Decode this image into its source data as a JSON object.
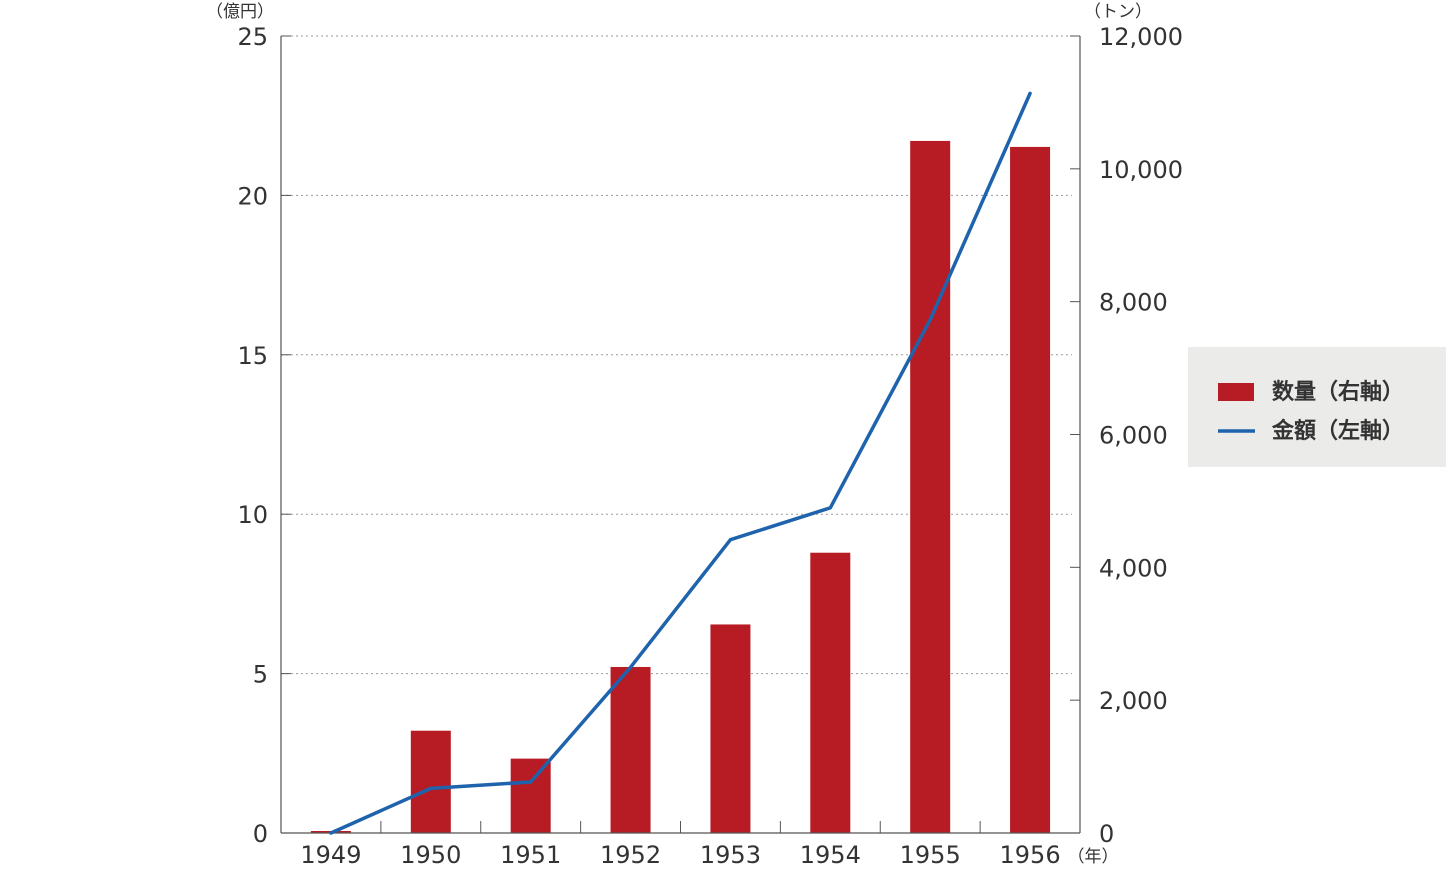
{
  "chart_data": {
    "type": "bar",
    "categories": [
      "1949",
      "1950",
      "1951",
      "1952",
      "1953",
      "1954",
      "1955",
      "1956"
    ],
    "series": [
      {
        "name": "数量（右軸）",
        "type": "bar",
        "axis": "right",
        "color": "#b71c25",
        "values": [
          30,
          1540,
          1120,
          2500,
          3140,
          4220,
          10420,
          10330
        ]
      },
      {
        "name": "金額（左軸）",
        "type": "line",
        "axis": "left",
        "color": "#1f63ad",
        "values": [
          0,
          1.4,
          1.6,
          5.2,
          9.2,
          10.2,
          16.1,
          23.2
        ]
      }
    ],
    "left_axis": {
      "unit": "（億円）",
      "ylim": [
        0,
        25
      ],
      "ticks": [
        0,
        5,
        10,
        15,
        20,
        25
      ],
      "tick_labels": [
        "0",
        "5",
        "10",
        "15",
        "20",
        "25"
      ]
    },
    "right_axis": {
      "unit": "（トン）",
      "ylim": [
        0,
        12000
      ],
      "ticks": [
        0,
        2000,
        4000,
        6000,
        8000,
        10000,
        12000
      ],
      "tick_labels": [
        "0",
        "2,000",
        "4,000",
        "6,000",
        "8,000",
        "10,000",
        "12,000"
      ]
    },
    "x_axis_unit": "（年）",
    "grid": true,
    "legend_placement": "right"
  },
  "legend": {
    "items": [
      {
        "label": "数量（右軸）",
        "symbol": "bar",
        "color": "#b71c25"
      },
      {
        "label": "金額（左軸）",
        "symbol": "line",
        "color": "#1f63ad"
      }
    ]
  }
}
